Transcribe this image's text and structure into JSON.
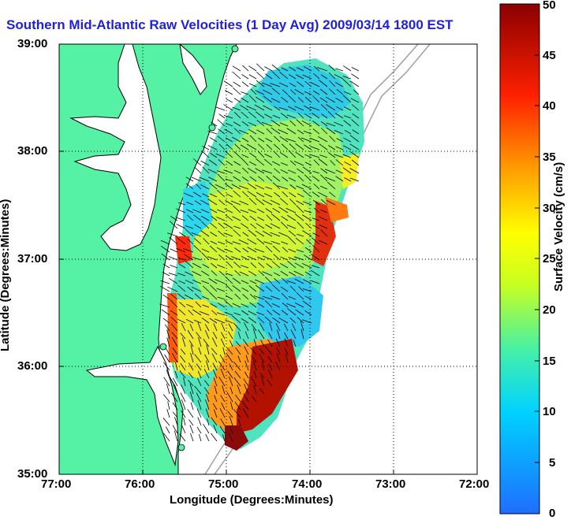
{
  "map": {
    "title": "Southern Mid-Atlantic Raw Velocities (1 Day Avg) 2009/03/14 1800 EST",
    "xlabel": "Longitude (Degrees:Minutes)",
    "ylabel": "Latitude (Degrees:Minutes)",
    "x_ticks": [
      "77:00",
      "76:00",
      "75:00",
      "74:00",
      "73:00",
      "72:00"
    ],
    "y_ticks": [
      "39:00",
      "38:00",
      "37:00",
      "36:00",
      "35:00"
    ],
    "lon_range": [
      -77,
      -72
    ],
    "lat_range": [
      35,
      39
    ],
    "land_color": "#55f2a5",
    "coastline_color": "#000000",
    "bathymetry_color": "#a0a0a0",
    "grid": "dotted"
  },
  "colorbar": {
    "label": "Surface Velocity (cm/s)",
    "ticks": [
      "50",
      "45",
      "40",
      "35",
      "30",
      "25",
      "20",
      "15",
      "10",
      "5",
      "0"
    ],
    "range": [
      0,
      50
    ],
    "colors": [
      "#1e6eff",
      "#00d2ff",
      "#44f0a8",
      "#c8ff20",
      "#ffff00",
      "#ff9a00",
      "#ff2000",
      "#8b0000"
    ]
  }
}
